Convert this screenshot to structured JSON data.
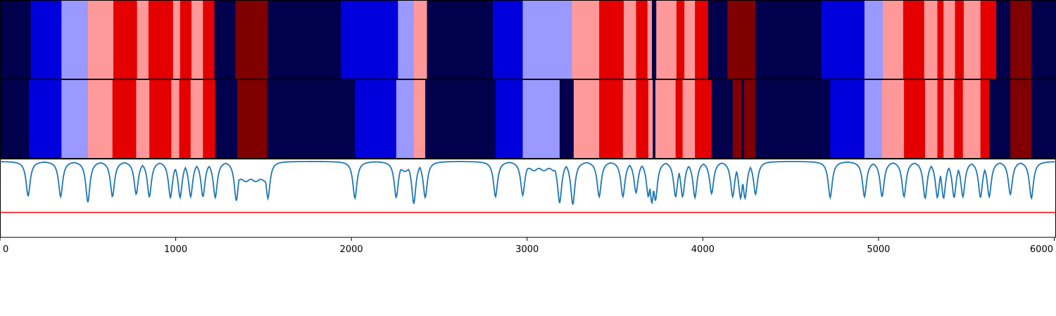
{
  "chart_data": {
    "type": "segmentation-plot",
    "xlim": [
      0,
      6010
    ],
    "x_ticks": [
      {
        "value": 0,
        "label": "0"
      },
      {
        "value": 1000,
        "label": "1000"
      },
      {
        "value": 2000,
        "label": "2000"
      },
      {
        "value": 3000,
        "label": "3000"
      },
      {
        "value": 4000,
        "label": "4000"
      },
      {
        "value": 5000,
        "label": "5000"
      },
      {
        "value": 6000,
        "label": "6000"
      }
    ],
    "state_colors": {
      "0": "#00004c",
      "1": "#0000dd",
      "2": "#9999ff",
      "3": "#ff9999",
      "4": "#e50000",
      "5": "#800000"
    },
    "tracks": [
      {
        "segments": [
          [
            0,
            175,
            0
          ],
          [
            175,
            350,
            1
          ],
          [
            350,
            500,
            2
          ],
          [
            500,
            645,
            3
          ],
          [
            645,
            780,
            4
          ],
          [
            780,
            845,
            3
          ],
          [
            845,
            985,
            4
          ],
          [
            985,
            1025,
            3
          ],
          [
            1025,
            1090,
            4
          ],
          [
            1090,
            1155,
            3
          ],
          [
            1155,
            1220,
            4
          ],
          [
            1220,
            1340,
            0
          ],
          [
            1340,
            1525,
            5
          ],
          [
            1525,
            1940,
            0
          ],
          [
            1940,
            2265,
            1
          ],
          [
            2265,
            2355,
            2
          ],
          [
            2355,
            2430,
            3
          ],
          [
            2430,
            2805,
            0
          ],
          [
            2805,
            2975,
            1
          ],
          [
            2975,
            3255,
            2
          ],
          [
            3255,
            3410,
            3
          ],
          [
            3410,
            3550,
            4
          ],
          [
            3550,
            3620,
            3
          ],
          [
            3620,
            3685,
            4
          ],
          [
            3685,
            3710,
            3
          ],
          [
            3710,
            3735,
            0
          ],
          [
            3735,
            3850,
            3
          ],
          [
            3850,
            3895,
            4
          ],
          [
            3895,
            3955,
            3
          ],
          [
            3955,
            4030,
            4
          ],
          [
            4030,
            4140,
            0
          ],
          [
            4140,
            4300,
            5
          ],
          [
            4300,
            4675,
            0
          ],
          [
            4675,
            4920,
            1
          ],
          [
            4920,
            5025,
            2
          ],
          [
            5025,
            5140,
            3
          ],
          [
            5140,
            5260,
            4
          ],
          [
            5260,
            5335,
            3
          ],
          [
            5335,
            5370,
            4
          ],
          [
            5370,
            5435,
            3
          ],
          [
            5435,
            5485,
            4
          ],
          [
            5485,
            5580,
            3
          ],
          [
            5580,
            5670,
            4
          ],
          [
            5670,
            5750,
            0
          ],
          [
            5750,
            5870,
            5
          ],
          [
            5870,
            6010,
            0
          ]
        ]
      },
      {
        "segments": [
          [
            0,
            165,
            0
          ],
          [
            165,
            350,
            1
          ],
          [
            350,
            500,
            2
          ],
          [
            500,
            640,
            3
          ],
          [
            640,
            775,
            4
          ],
          [
            775,
            850,
            3
          ],
          [
            850,
            975,
            4
          ],
          [
            975,
            1020,
            3
          ],
          [
            1020,
            1085,
            4
          ],
          [
            1085,
            1155,
            3
          ],
          [
            1155,
            1225,
            4
          ],
          [
            1225,
            1350,
            0
          ],
          [
            1350,
            1520,
            5
          ],
          [
            1520,
            2020,
            0
          ],
          [
            2020,
            2255,
            1
          ],
          [
            2255,
            2355,
            2
          ],
          [
            2355,
            2420,
            3
          ],
          [
            2420,
            2820,
            0
          ],
          [
            2820,
            2975,
            1
          ],
          [
            2975,
            3185,
            2
          ],
          [
            3185,
            3265,
            0
          ],
          [
            3265,
            3410,
            3
          ],
          [
            3410,
            3545,
            4
          ],
          [
            3545,
            3620,
            3
          ],
          [
            3620,
            3690,
            4
          ],
          [
            3690,
            3715,
            3
          ],
          [
            3715,
            3730,
            0
          ],
          [
            3730,
            3845,
            3
          ],
          [
            3845,
            3885,
            4
          ],
          [
            3885,
            3955,
            3
          ],
          [
            3955,
            4050,
            4
          ],
          [
            4050,
            4170,
            0
          ],
          [
            4170,
            4220,
            5
          ],
          [
            4220,
            4235,
            0
          ],
          [
            4235,
            4300,
            5
          ],
          [
            4300,
            4725,
            0
          ],
          [
            4725,
            4920,
            1
          ],
          [
            4920,
            5020,
            2
          ],
          [
            5020,
            5145,
            3
          ],
          [
            5145,
            5265,
            4
          ],
          [
            5265,
            5335,
            3
          ],
          [
            5335,
            5370,
            4
          ],
          [
            5370,
            5430,
            3
          ],
          [
            5430,
            5480,
            4
          ],
          [
            5480,
            5580,
            3
          ],
          [
            5580,
            5630,
            4
          ],
          [
            5630,
            5750,
            0
          ],
          [
            5750,
            5870,
            5
          ],
          [
            5870,
            6010,
            0
          ]
        ]
      }
    ],
    "line_series": {
      "color": "#1f77b4",
      "ylim": [
        0,
        1
      ],
      "baseline": 0.975,
      "dips": [
        [
          160,
          0.53
        ],
        [
          345,
          0.52
        ],
        [
          500,
          0.45
        ],
        [
          640,
          0.52
        ],
        [
          775,
          0.55
        ],
        [
          850,
          0.52
        ],
        [
          970,
          0.51
        ],
        [
          1025,
          0.51
        ],
        [
          1085,
          0.52
        ],
        [
          1155,
          0.52
        ],
        [
          1225,
          0.51
        ],
        [
          1345,
          0.47
        ],
        [
          1525,
          0.5
        ],
        [
          2020,
          0.5
        ],
        [
          2255,
          0.51
        ],
        [
          2355,
          0.43
        ],
        [
          2420,
          0.51
        ],
        [
          2820,
          0.52
        ],
        [
          2975,
          0.54
        ],
        [
          3185,
          0.44
        ],
        [
          3260,
          0.42
        ],
        [
          3410,
          0.52
        ],
        [
          3545,
          0.52
        ],
        [
          3620,
          0.57
        ],
        [
          3690,
          0.52
        ],
        [
          3710,
          0.44
        ],
        [
          3730,
          0.47
        ],
        [
          3845,
          0.52
        ],
        [
          3885,
          0.52
        ],
        [
          3955,
          0.51
        ],
        [
          4050,
          0.56
        ],
        [
          4170,
          0.52
        ],
        [
          4215,
          0.5
        ],
        [
          4240,
          0.5
        ],
        [
          4300,
          0.55
        ],
        [
          4725,
          0.51
        ],
        [
          4920,
          0.52
        ],
        [
          5020,
          0.52
        ],
        [
          5145,
          0.52
        ],
        [
          5265,
          0.5
        ],
        [
          5335,
          0.51
        ],
        [
          5370,
          0.5
        ],
        [
          5430,
          0.51
        ],
        [
          5480,
          0.52
        ],
        [
          5580,
          0.51
        ],
        [
          5630,
          0.52
        ],
        [
          5750,
          0.55
        ],
        [
          5870,
          0.5
        ]
      ],
      "plateaus": [
        {
          "range": [
            1360,
            1515
          ],
          "value": 0.73
        },
        {
          "range": [
            2980,
            3180
          ],
          "value": 0.87
        },
        {
          "range": [
            2280,
            2340
          ],
          "value": 0.86
        }
      ]
    },
    "threshold": {
      "value": 0.32,
      "color": "#ff0000"
    }
  }
}
